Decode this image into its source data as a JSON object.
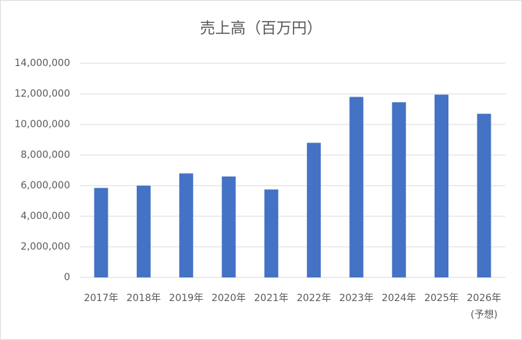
{
  "chart_data": {
    "type": "bar",
    "title": "売上高（百万円）",
    "categories": [
      "2017年",
      "2018年",
      "2019年",
      "2020年",
      "2021年",
      "2022年",
      "2023年",
      "2024年",
      "2025年",
      "2026年\n(予想)"
    ],
    "values": [
      5850000,
      6000000,
      6800000,
      6600000,
      5750000,
      8800000,
      11800000,
      11450000,
      11950000,
      10700000
    ],
    "color": "#4472c4",
    "ylim": [
      0,
      14000000
    ],
    "yticks": [
      0,
      {
        "value": 2000000,
        "label": "2,000,000"
      },
      {
        "value": 4000000,
        "label": "4,000,000"
      },
      {
        "value": 6000000,
        "label": "6,000,000"
      },
      {
        "value": 8000000,
        "label": "8,000,000"
      },
      {
        "value": 10000000,
        "label": "10,000,000"
      },
      {
        "value": 12000000,
        "label": "12,000,000"
      },
      {
        "value": 14000000,
        "label": "14,000,000"
      }
    ],
    "grid": true
  }
}
